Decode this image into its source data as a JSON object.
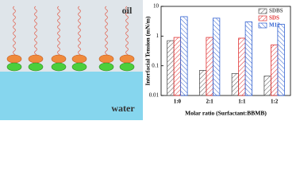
{
  "illustration": {
    "labels": [
      "oil",
      "water"
    ]
  },
  "chart_data": {
    "type": "bar",
    "ylabel": "Interfacial Tension (mN/m)",
    "xlabel": "Molar ratio (Surfactant:BBMB)",
    "categories": [
      "1:0",
      "2:1",
      "1:1",
      "1:2"
    ],
    "series": [
      {
        "name": "SDBS",
        "color": "#555555",
        "values": [
          0.7,
          0.07,
          0.055,
          0.045
        ]
      },
      {
        "name": "SDS",
        "color": "#e03030",
        "values": [
          0.9,
          0.9,
          0.85,
          0.5
        ]
      },
      {
        "name": "M12",
        "color": "#3060d0",
        "values": [
          4.5,
          4,
          3,
          2.5
        ]
      }
    ],
    "ylim": [
      0.01,
      10
    ],
    "yticks": [
      0.01,
      0.1,
      1,
      10
    ],
    "log_scale": true,
    "legend": "upper right"
  }
}
